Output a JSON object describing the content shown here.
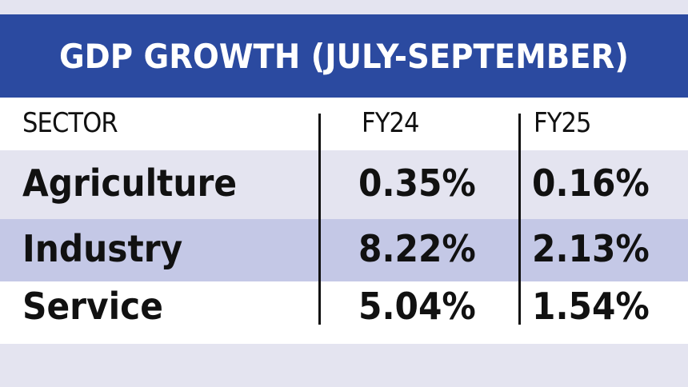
{
  "title": "GDP GROWTH (JULY-SEPTEMBER)",
  "colors": {
    "banner": "#2b4aa0",
    "highlight_row": "#c4c8e6",
    "light_row": "#e4e4f0"
  },
  "chart_data": {
    "type": "table",
    "title": "GDP GROWTH (JULY-SEPTEMBER)",
    "columns": [
      "SECTOR",
      "FY24",
      "FY25"
    ],
    "rows": [
      {
        "sector": "Agriculture",
        "fy24": "0.35%",
        "fy25": "0.16%"
      },
      {
        "sector": "Industry",
        "fy24": "8.22%",
        "fy25": "2.13%"
      },
      {
        "sector": "Service",
        "fy24": "5.04%",
        "fy25": "1.54%"
      }
    ]
  }
}
